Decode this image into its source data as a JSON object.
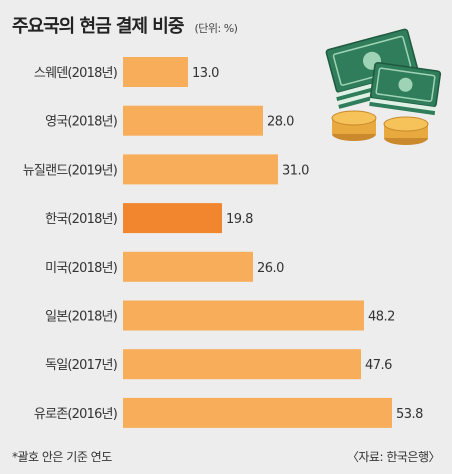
{
  "header": {
    "title": "주요국의 현금 결제 비중",
    "unit": "(단위: %)"
  },
  "footer": {
    "note": "*괄호 안은 기준 연도",
    "source": "〈자료: 한국은행〉"
  },
  "colors": {
    "bar": "#f7ad5a",
    "highlight": "#f2862e",
    "background": "#ededed"
  },
  "illustration": {
    "icon": "money-stack-and-coins"
  },
  "chart_data": {
    "type": "bar",
    "orientation": "horizontal",
    "title": "주요국의 현금 결제 비중",
    "unit": "%",
    "categories": [
      "스웨덴(2018년)",
      "영국(2018년)",
      "뉴질랜드(2019년)",
      "한국(2018년)",
      "미국(2018년)",
      "일본(2018년)",
      "독일(2017년)",
      "유로존(2016년)"
    ],
    "values": [
      13.0,
      28.0,
      31.0,
      19.8,
      26.0,
      48.2,
      47.6,
      53.8
    ],
    "value_labels": [
      "13.0",
      "28.0",
      "31.0",
      "19.8",
      "26.0",
      "48.2",
      "47.6",
      "53.8"
    ],
    "highlight": "한국(2018년)",
    "xlim": [
      0,
      60
    ],
    "grid": false,
    "legend": "none"
  }
}
